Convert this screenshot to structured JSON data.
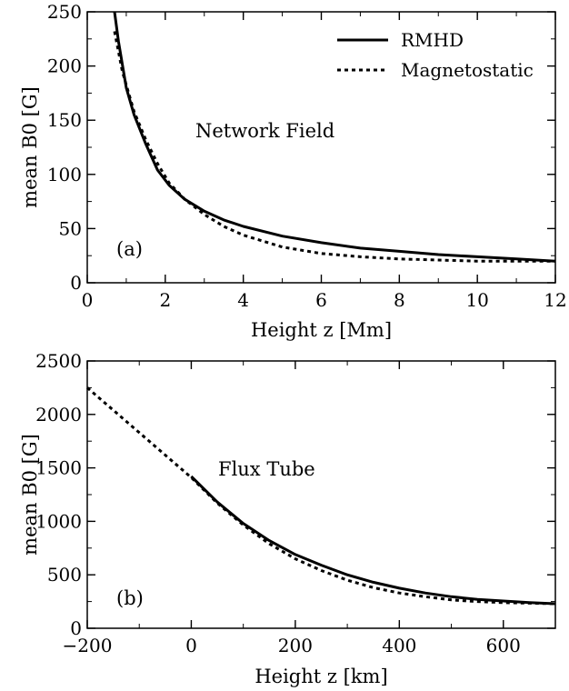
{
  "chart_data": [
    {
      "type": "line",
      "panel_label": "(a)",
      "annotation": "Network Field",
      "xlabel": "Height z [Mm]",
      "ylabel": "mean B0 [G]",
      "xlim": [
        0,
        12
      ],
      "ylim": [
        0,
        250
      ],
      "xticks": [
        "0",
        "2",
        "4",
        "6",
        "8",
        "10",
        "12"
      ],
      "yticks": [
        "0",
        "50",
        "100",
        "150",
        "200",
        "250"
      ],
      "legend": {
        "placement": "top-right",
        "entries": [
          "RMHD",
          "Magnetostatic"
        ]
      },
      "grid": false,
      "series": [
        {
          "name": "RMHD",
          "style": "solid",
          "x": [
            0.7,
            0.8,
            1.0,
            1.2,
            1.5,
            1.8,
            2.1,
            2.5,
            3.0,
            3.5,
            4.0,
            5.0,
            6.0,
            7.0,
            8.0,
            9.0,
            10.0,
            11.0,
            12.0
          ],
          "y": [
            250,
            223,
            180,
            155,
            128,
            104,
            90,
            77,
            66,
            58,
            52,
            43,
            37,
            32,
            29,
            26,
            24,
            22,
            20
          ]
        },
        {
          "name": "Magnetostatic",
          "style": "dotted",
          "x": [
            0.7,
            0.9,
            1.2,
            1.5,
            1.8,
            2.1,
            2.5,
            3.0,
            3.5,
            4.0,
            5.0,
            6.0,
            7.0,
            8.0,
            9.0,
            10.0,
            11.0,
            12.0
          ],
          "y": [
            232,
            195,
            158,
            132,
            110,
            92,
            77,
            63,
            52,
            44,
            33,
            27,
            24,
            22,
            21,
            20,
            20,
            20
          ]
        }
      ]
    },
    {
      "type": "line",
      "panel_label": "(b)",
      "annotation": "Flux Tube",
      "xlabel": "Height z [km]",
      "ylabel": "mean B0 [G]",
      "xlim": [
        -200,
        700
      ],
      "ylim": [
        0,
        2500
      ],
      "xticks": [
        "−200",
        "0",
        "200",
        "400",
        "600"
      ],
      "yticks": [
        "0",
        "500",
        "1000",
        "1500",
        "2000",
        "2500"
      ],
      "grid": false,
      "series": [
        {
          "name": "RMHD",
          "style": "solid",
          "x": [
            0,
            50,
            100,
            150,
            200,
            250,
            300,
            350,
            400,
            450,
            500,
            550,
            600,
            650,
            700
          ],
          "y": [
            1420,
            1180,
            980,
            820,
            690,
            590,
            500,
            430,
            375,
            330,
            295,
            270,
            255,
            240,
            230
          ]
        },
        {
          "name": "Magnetostatic",
          "style": "dotted",
          "x": [
            -200,
            -150,
            -100,
            -50,
            0,
            50,
            100,
            150,
            200,
            250,
            300,
            350,
            400,
            450,
            500,
            550,
            600,
            650,
            700
          ],
          "y": [
            2250,
            2040,
            1830,
            1620,
            1410,
            1170,
            965,
            790,
            650,
            540,
            450,
            380,
            330,
            295,
            265,
            250,
            240,
            235,
            230
          ]
        }
      ]
    }
  ]
}
